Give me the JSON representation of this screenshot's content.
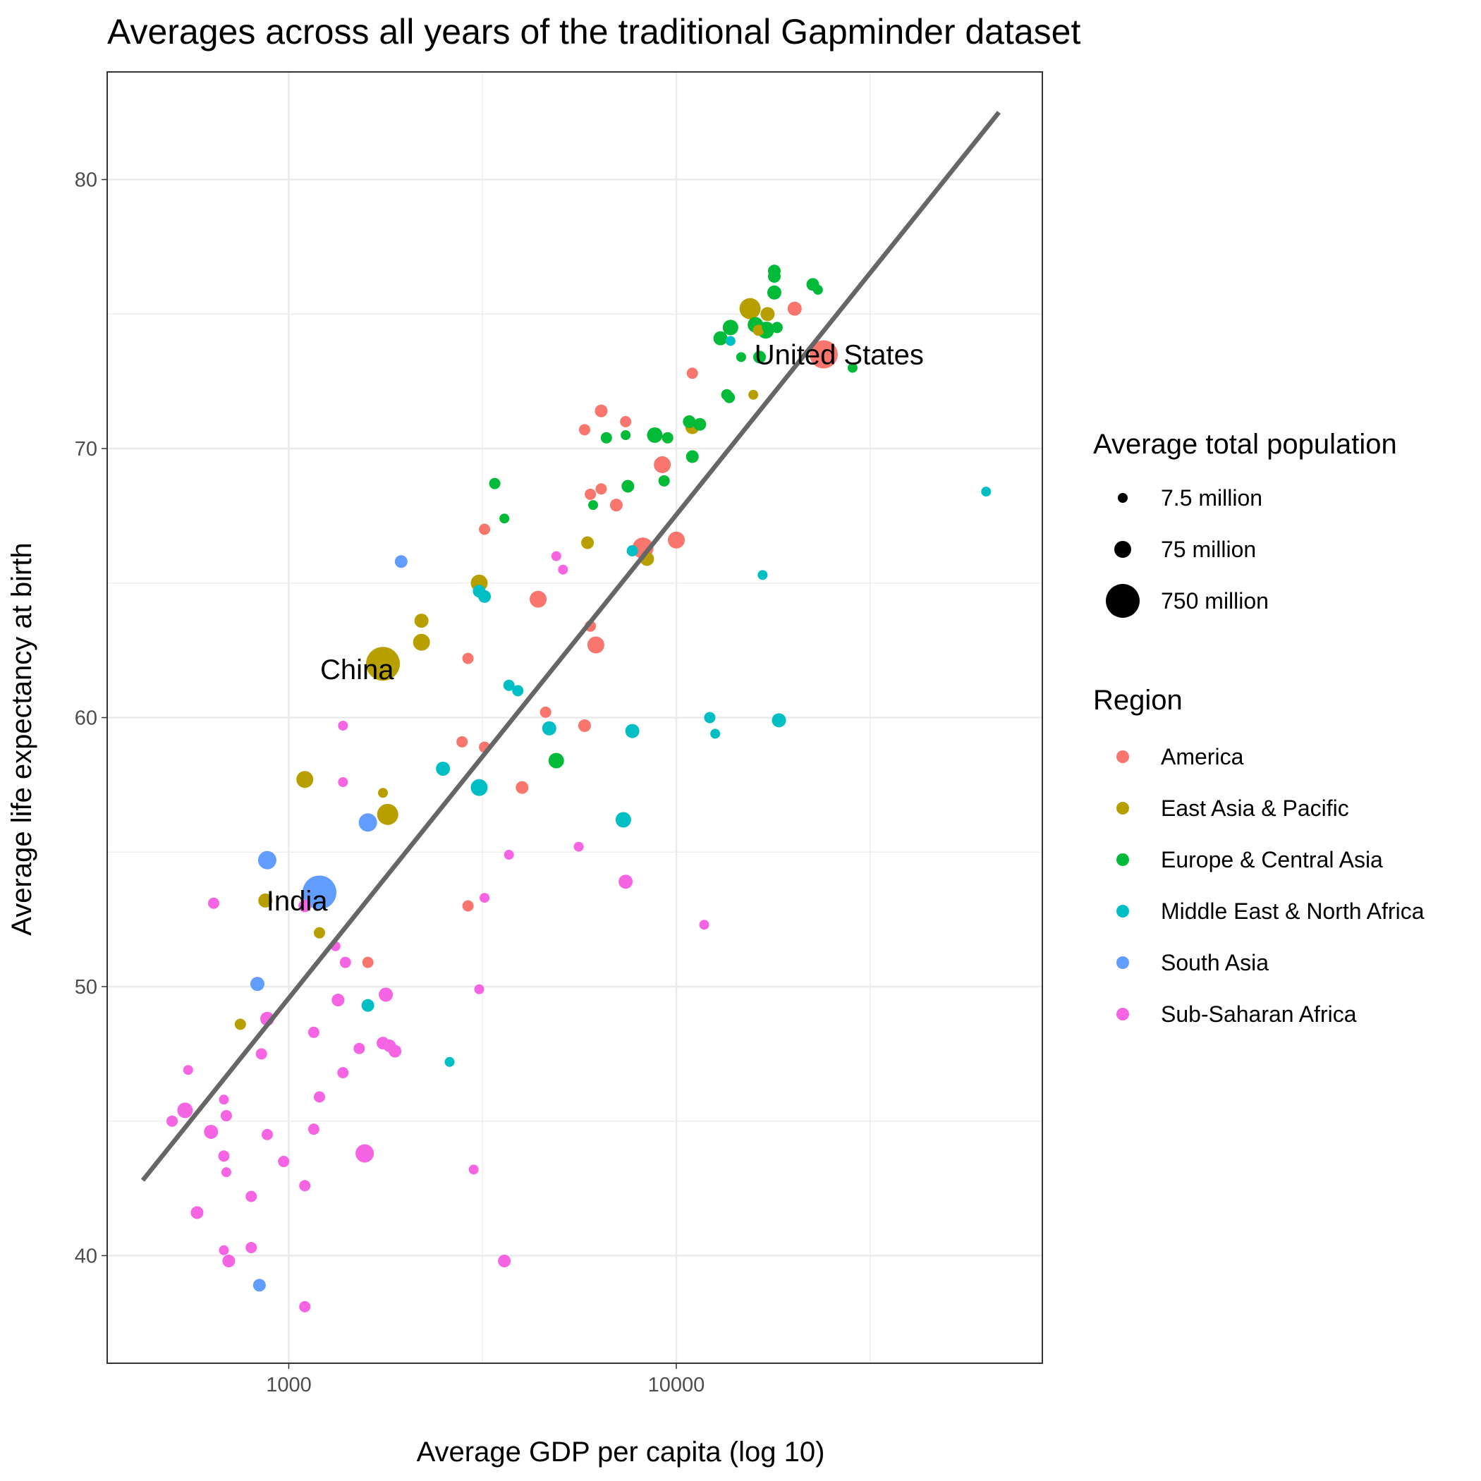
{
  "chart_data": {
    "type": "scatter",
    "title": "Averages across all years of the traditional Gapminder dataset",
    "xlabel": "Average GDP per capita (log 10)",
    "ylabel": "Average life expectancy at birth",
    "x_scale": "log10",
    "xlim": [
      340,
      88000
    ],
    "ylim": [
      36,
      84
    ],
    "x_ticks": [
      1000,
      10000
    ],
    "x_tick_labels": [
      "1000",
      "10000"
    ],
    "y_ticks": [
      40,
      50,
      60,
      70,
      80
    ],
    "y_tick_labels": [
      "40",
      "50",
      "60",
      "70",
      "80"
    ],
    "grid": true,
    "size_legend": {
      "title": "Average total population",
      "entries": [
        {
          "label": "7.5 million",
          "value": 7.5
        },
        {
          "label": "75 million",
          "value": 75
        },
        {
          "label": "750 million",
          "value": 750
        }
      ]
    },
    "color_legend": {
      "title": "Region",
      "placement": "right",
      "entries": [
        {
          "label": "America",
          "color": "#F8766D"
        },
        {
          "label": "East Asia & Pacific",
          "color": "#B79F00"
        },
        {
          "label": "Europe & Central Asia",
          "color": "#00BA38"
        },
        {
          "label": "Middle East & North Africa",
          "color": "#00BFC4"
        },
        {
          "label": "South Asia",
          "color": "#619CFF"
        },
        {
          "label": "Sub-Saharan Africa",
          "color": "#F564E3"
        }
      ]
    },
    "trend_line": {
      "color": "#666666",
      "x": [
        420,
        68000
      ],
      "y": [
        42.8,
        82.5
      ]
    },
    "annotations": [
      {
        "text": "United States",
        "x": 26300,
        "y": 73.5
      },
      {
        "text": "China",
        "x": 1500,
        "y": 61.8
      },
      {
        "text": "India",
        "x": 1050,
        "y": 53.2
      }
    ],
    "points": [
      [
        24000,
        73.5,
        0,
        20
      ],
      [
        8200,
        66.3,
        0,
        15
      ],
      [
        6200,
        62.7,
        0,
        12
      ],
      [
        4400,
        64.4,
        0,
        12
      ],
      [
        9200,
        69.4,
        0,
        12
      ],
      [
        10000,
        66.6,
        0,
        12
      ],
      [
        20200,
        75.2,
        0,
        10
      ],
      [
        11000,
        72.8,
        0,
        8
      ],
      [
        6400,
        71.4,
        0,
        9
      ],
      [
        7400,
        71.0,
        0,
        8
      ],
      [
        5800,
        70.7,
        0,
        8
      ],
      [
        6400,
        68.5,
        0,
        8
      ],
      [
        6000,
        68.3,
        0,
        8
      ],
      [
        7000,
        67.9,
        0,
        9
      ],
      [
        3200,
        67.0,
        0,
        8
      ],
      [
        6000,
        63.4,
        0,
        8
      ],
      [
        2900,
        62.2,
        0,
        8
      ],
      [
        4600,
        60.2,
        0,
        8
      ],
      [
        5800,
        59.7,
        0,
        9
      ],
      [
        2800,
        59.1,
        0,
        8
      ],
      [
        3200,
        58.9,
        0,
        8
      ],
      [
        4000,
        57.4,
        0,
        9
      ],
      [
        1600,
        50.9,
        0,
        8
      ],
      [
        2900,
        53.0,
        0,
        8
      ],
      [
        15500,
        75.2,
        1,
        15
      ],
      [
        17200,
        75.0,
        1,
        10
      ],
      [
        16300,
        74.4,
        1,
        8
      ],
      [
        11000,
        70.8,
        1,
        10
      ],
      [
        8400,
        65.9,
        1,
        10
      ],
      [
        5900,
        66.5,
        1,
        9
      ],
      [
        3100,
        65.0,
        1,
        12
      ],
      [
        2200,
        63.6,
        1,
        10
      ],
      [
        2200,
        62.8,
        1,
        12
      ],
      [
        1750,
        62.0,
        1,
        24
      ],
      [
        1100,
        57.7,
        1,
        12
      ],
      [
        1800,
        56.4,
        1,
        15
      ],
      [
        1750,
        57.2,
        1,
        7
      ],
      [
        870,
        53.2,
        1,
        10
      ],
      [
        1200,
        52.0,
        1,
        8
      ],
      [
        750,
        48.6,
        1,
        8
      ],
      [
        15800,
        72.0,
        1,
        7
      ],
      [
        17900,
        76.6,
        2,
        9
      ],
      [
        17900,
        76.4,
        2,
        9
      ],
      [
        17900,
        75.8,
        2,
        10
      ],
      [
        22500,
        76.1,
        2,
        9
      ],
      [
        23200,
        75.9,
        2,
        7
      ],
      [
        13800,
        74.5,
        2,
        11
      ],
      [
        16000,
        74.6,
        2,
        11
      ],
      [
        17000,
        74.4,
        2,
        12
      ],
      [
        18200,
        74.5,
        2,
        8
      ],
      [
        13000,
        74.1,
        2,
        10
      ],
      [
        17200,
        74.5,
        2,
        8
      ],
      [
        14700,
        73.4,
        2,
        7
      ],
      [
        16400,
        73.4,
        2,
        9
      ],
      [
        28500,
        73.0,
        2,
        7
      ],
      [
        13500,
        72.0,
        2,
        8
      ],
      [
        13700,
        71.9,
        2,
        8
      ],
      [
        10800,
        71.0,
        2,
        9
      ],
      [
        11500,
        70.9,
        2,
        9
      ],
      [
        8800,
        70.5,
        2,
        11
      ],
      [
        9500,
        70.4,
        2,
        8
      ],
      [
        6600,
        70.4,
        2,
        8
      ],
      [
        7400,
        70.5,
        2,
        7
      ],
      [
        11000,
        69.7,
        2,
        9
      ],
      [
        7500,
        68.6,
        2,
        9
      ],
      [
        9300,
        68.8,
        2,
        8
      ],
      [
        6100,
        67.9,
        2,
        7
      ],
      [
        3400,
        68.7,
        2,
        8
      ],
      [
        3600,
        67.4,
        2,
        7
      ],
      [
        4900,
        58.4,
        2,
        11
      ],
      [
        13800,
        74.0,
        3,
        7
      ],
      [
        7700,
        66.2,
        3,
        8
      ],
      [
        16700,
        65.3,
        3,
        7
      ],
      [
        3100,
        64.7,
        3,
        9
      ],
      [
        3200,
        64.5,
        3,
        9
      ],
      [
        3700,
        61.2,
        3,
        8
      ],
      [
        3900,
        61.0,
        3,
        8
      ],
      [
        12200,
        60.0,
        3,
        8
      ],
      [
        12600,
        59.4,
        3,
        7
      ],
      [
        18400,
        59.9,
        3,
        10
      ],
      [
        4700,
        59.6,
        3,
        10
      ],
      [
        7700,
        59.5,
        3,
        10
      ],
      [
        2500,
        58.1,
        3,
        10
      ],
      [
        3100,
        57.4,
        3,
        12
      ],
      [
        7300,
        56.2,
        3,
        11
      ],
      [
        1600,
        49.3,
        3,
        9
      ],
      [
        2600,
        47.2,
        3,
        7
      ],
      [
        63000,
        68.4,
        3,
        7
      ],
      [
        1950,
        65.8,
        4,
        9
      ],
      [
        1600,
        56.1,
        4,
        13
      ],
      [
        880,
        54.7,
        4,
        13
      ],
      [
        1200,
        53.5,
        4,
        24
      ],
      [
        830,
        50.1,
        4,
        10
      ],
      [
        840,
        38.9,
        4,
        9
      ],
      [
        4900,
        66.0,
        5,
        7
      ],
      [
        5100,
        65.5,
        5,
        7
      ],
      [
        1380,
        59.7,
        5,
        7
      ],
      [
        1380,
        57.6,
        5,
        7
      ],
      [
        5600,
        55.2,
        5,
        7
      ],
      [
        3700,
        54.9,
        5,
        7
      ],
      [
        7400,
        53.9,
        5,
        10
      ],
      [
        3200,
        53.3,
        5,
        7
      ],
      [
        11800,
        52.3,
        5,
        7
      ],
      [
        640,
        53.1,
        5,
        8
      ],
      [
        1100,
        53.0,
        5,
        9
      ],
      [
        1320,
        51.5,
        5,
        7
      ],
      [
        1400,
        50.9,
        5,
        8
      ],
      [
        3100,
        49.9,
        5,
        7
      ],
      [
        1340,
        49.5,
        5,
        9
      ],
      [
        1780,
        49.7,
        5,
        10
      ],
      [
        880,
        48.8,
        5,
        10
      ],
      [
        1160,
        48.3,
        5,
        8
      ],
      [
        850,
        47.5,
        5,
        8
      ],
      [
        1520,
        47.7,
        5,
        8
      ],
      [
        1750,
        47.9,
        5,
        9
      ],
      [
        1820,
        47.8,
        5,
        9
      ],
      [
        1880,
        47.6,
        5,
        9
      ],
      [
        550,
        46.9,
        5,
        7
      ],
      [
        1380,
        46.8,
        5,
        8
      ],
      [
        540,
        45.4,
        5,
        11
      ],
      [
        680,
        45.8,
        5,
        7
      ],
      [
        690,
        45.2,
        5,
        8
      ],
      [
        1200,
        45.9,
        5,
        8
      ],
      [
        630,
        44.6,
        5,
        10
      ],
      [
        880,
        44.5,
        5,
        8
      ],
      [
        1160,
        44.7,
        5,
        8
      ],
      [
        1570,
        43.8,
        5,
        13
      ],
      [
        500,
        45.0,
        5,
        8
      ],
      [
        970,
        43.5,
        5,
        8
      ],
      [
        680,
        43.7,
        5,
        8
      ],
      [
        690,
        43.1,
        5,
        7
      ],
      [
        3000,
        43.2,
        5,
        7
      ],
      [
        1100,
        42.6,
        5,
        8
      ],
      [
        800,
        42.2,
        5,
        8
      ],
      [
        580,
        41.6,
        5,
        9
      ],
      [
        800,
        40.3,
        5,
        8
      ],
      [
        680,
        40.2,
        5,
        7
      ],
      [
        700,
        39.8,
        5,
        9
      ],
      [
        3600,
        39.8,
        5,
        9
      ],
      [
        1100,
        38.1,
        5,
        8
      ]
    ]
  }
}
